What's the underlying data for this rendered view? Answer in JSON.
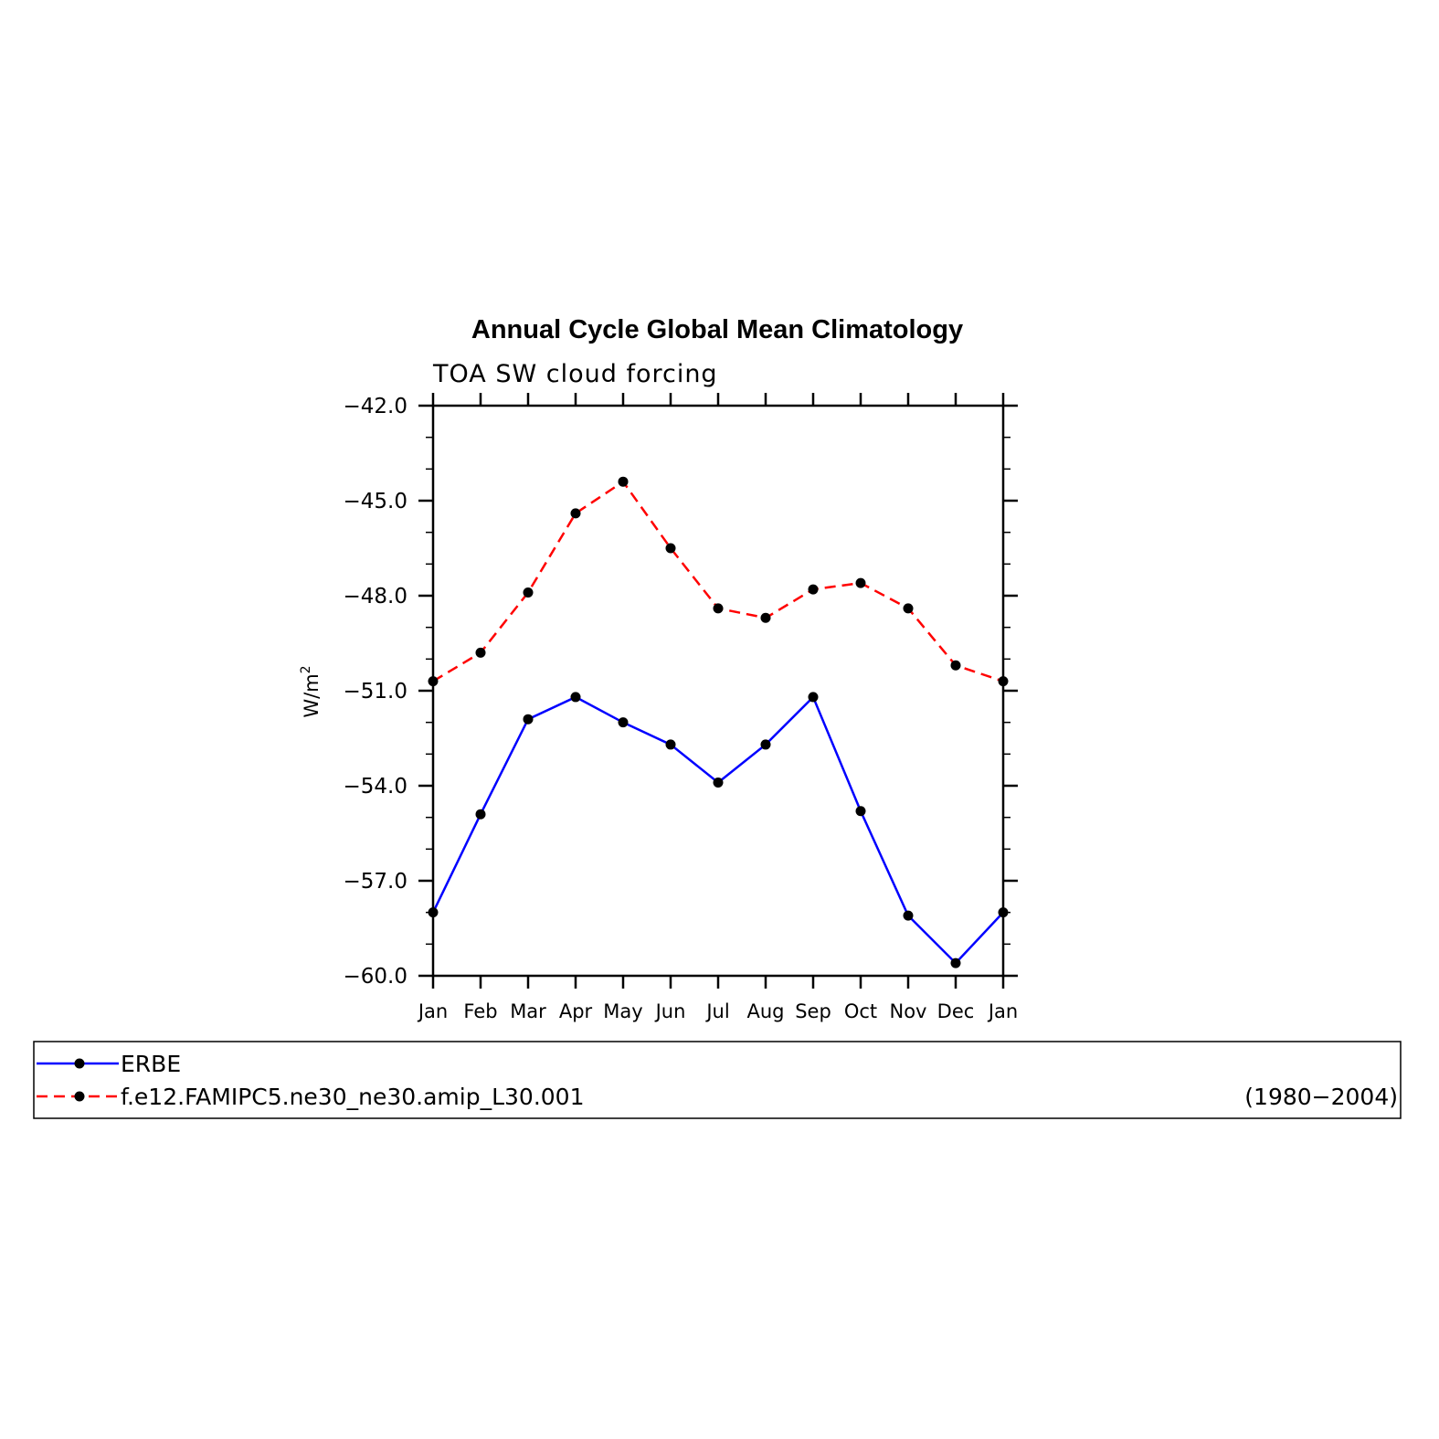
{
  "chart_data": {
    "type": "line",
    "title": "Annual Cycle Global Mean Climatology",
    "subtitle": "TOA SW cloud forcing",
    "ylabel_base": "W/m",
    "ylabel_sup": "2",
    "categories": [
      "Jan",
      "Feb",
      "Mar",
      "Apr",
      "May",
      "Jun",
      "Jul",
      "Aug",
      "Sep",
      "Oct",
      "Nov",
      "Dec",
      "Jan"
    ],
    "ylim": [
      -60.0,
      -42.0
    ],
    "yticks": [
      -42.0,
      -45.0,
      -48.0,
      -51.0,
      -54.0,
      -57.0,
      -60.0
    ],
    "ytick_labels": [
      "−42.0",
      "−45.0",
      "−48.0",
      "−51.0",
      "−54.0",
      "−57.0",
      "−60.0"
    ],
    "series": [
      {
        "name": "ERBE",
        "color": "#0000ff",
        "dash": "solid",
        "values": [
          -58.0,
          -54.9,
          -51.9,
          -51.2,
          -52.0,
          -52.7,
          -53.9,
          -52.7,
          -51.2,
          -54.8,
          -58.1,
          -59.6,
          -58.0
        ]
      },
      {
        "name": "f.e12.FAMIPC5.ne30_ne30.amip_L30.001",
        "color": "#ff0000",
        "dash": "dashed",
        "values": [
          -50.7,
          -49.8,
          -47.9,
          -45.4,
          -44.4,
          -46.5,
          -48.4,
          -48.7,
          -47.8,
          -47.6,
          -48.4,
          -50.2,
          -50.7
        ]
      }
    ],
    "legend_note": "(1980−2004)",
    "legend_placement": "bottom",
    "grid": false
  }
}
